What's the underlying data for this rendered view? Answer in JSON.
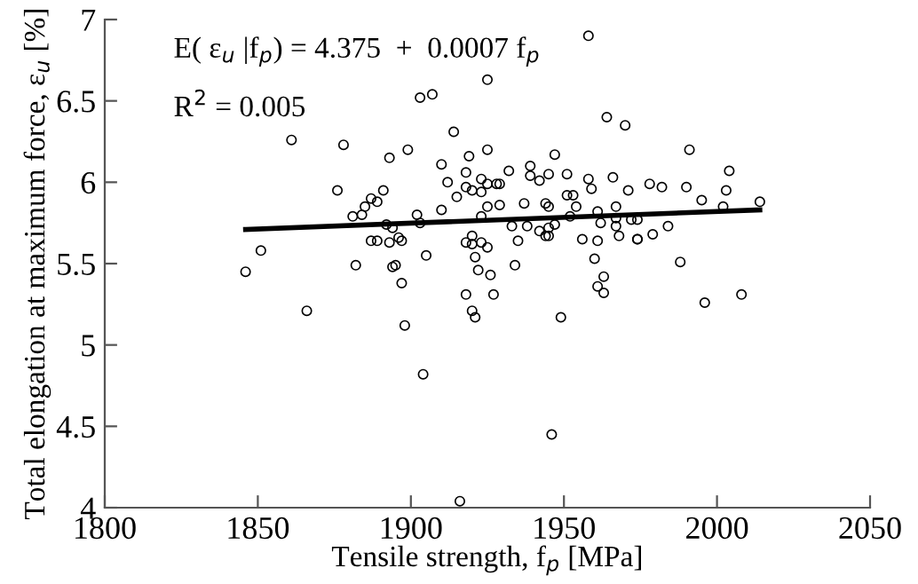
{
  "chart_data": {
    "type": "scatter",
    "xlabel": "Tensile strength, f$_{p}$ [MPa]",
    "ylabel": "Total elongation at maximum force, ε$_{u}$ [%]",
    "annotations": [
      "E( ε$_{u}$ |f$_{p}$) = 4.375  +  0.0007 f$_{p}$",
      "R$^{2}$ = 0.005"
    ],
    "xlim": [
      1800,
      2050
    ],
    "xticks": [
      1800,
      1850,
      1900,
      1950,
      2000,
      2050
    ],
    "ylim": [
      4,
      7
    ],
    "yticks": [
      4,
      4.5,
      5,
      5.5,
      6,
      6.5,
      7
    ],
    "grid": false,
    "legend": false,
    "series": [
      {
        "marker": "circle",
        "color": "#000000",
        "x": [
          1846,
          1851,
          1861,
          1866,
          1876,
          1878,
          1881,
          1882,
          1884,
          1885,
          1887,
          1889,
          1887,
          1889,
          1891,
          1892,
          1893,
          1894,
          1893,
          1894,
          1895,
          1896,
          1897,
          1897,
          1898,
          1899,
          1902,
          1903,
          1903,
          1904,
          1905,
          1907,
          1910,
          1910,
          1912,
          1914,
          1915,
          1916,
          1958,
          1925,
          1964,
          1970,
          1919,
          1925,
          1947,
          1991,
          2004,
          1918,
          1932,
          1939,
          1939,
          1942,
          1945,
          1951,
          1958,
          1959,
          1966,
          1971,
          1978,
          1982,
          1990,
          2003,
          1918,
          1920,
          1923,
          1923,
          1925,
          1928,
          1929,
          1951,
          1953,
          1954,
          1995,
          1925,
          1929,
          1923,
          1937,
          1944,
          1945,
          1961,
          1967,
          2002,
          2014,
          1952,
          1967,
          1972,
          1974,
          1933,
          1938,
          1942,
          1945,
          1945,
          1947,
          1962,
          1967,
          1984,
          1935,
          1944,
          1956,
          1961,
          1968,
          1974,
          1974,
          1979,
          1918,
          1920,
          1923,
          1925,
          1920,
          1921,
          1934,
          1960,
          1988,
          1922,
          1926,
          1963,
          1961,
          1963,
          1918,
          1927,
          1996,
          2008,
          1920,
          1921,
          1949,
          1946
        ],
        "values": [
          5.45,
          5.58,
          6.26,
          5.21,
          5.95,
          6.23,
          5.79,
          5.49,
          5.8,
          5.85,
          5.9,
          5.88,
          5.64,
          5.64,
          5.95,
          5.74,
          6.15,
          5.72,
          5.63,
          5.48,
          5.49,
          5.66,
          5.64,
          5.38,
          5.12,
          6.2,
          5.8,
          6.52,
          5.75,
          4.82,
          5.55,
          6.54,
          5.83,
          6.11,
          6.0,
          6.31,
          5.91,
          4.04,
          6.9,
          6.63,
          6.4,
          6.35,
          6.16,
          6.2,
          6.17,
          6.2,
          6.07,
          6.06,
          6.07,
          6.1,
          6.04,
          6.01,
          6.05,
          6.05,
          6.02,
          5.96,
          6.03,
          5.95,
          5.99,
          5.97,
          5.97,
          5.95,
          5.97,
          5.95,
          6.02,
          5.94,
          5.99,
          5.99,
          5.99,
          5.92,
          5.92,
          5.85,
          5.89,
          5.85,
          5.86,
          5.79,
          5.87,
          5.87,
          5.85,
          5.82,
          5.85,
          5.85,
          5.88,
          5.79,
          5.78,
          5.77,
          5.77,
          5.73,
          5.73,
          5.7,
          5.67,
          5.72,
          5.74,
          5.75,
          5.73,
          5.73,
          5.64,
          5.67,
          5.65,
          5.64,
          5.67,
          5.65,
          5.65,
          5.68,
          5.63,
          5.62,
          5.63,
          5.6,
          5.67,
          5.54,
          5.49,
          5.53,
          5.51,
          5.46,
          5.43,
          5.42,
          5.36,
          5.32,
          5.31,
          5.31,
          5.26,
          5.31,
          5.21,
          5.17,
          5.17,
          4.45
        ]
      },
      {
        "type": "line",
        "color": "#000000",
        "line_style": "solid",
        "marker": "none",
        "x": [
          1846,
          2014
        ],
        "values": [
          5.71,
          5.83
        ]
      }
    ]
  }
}
